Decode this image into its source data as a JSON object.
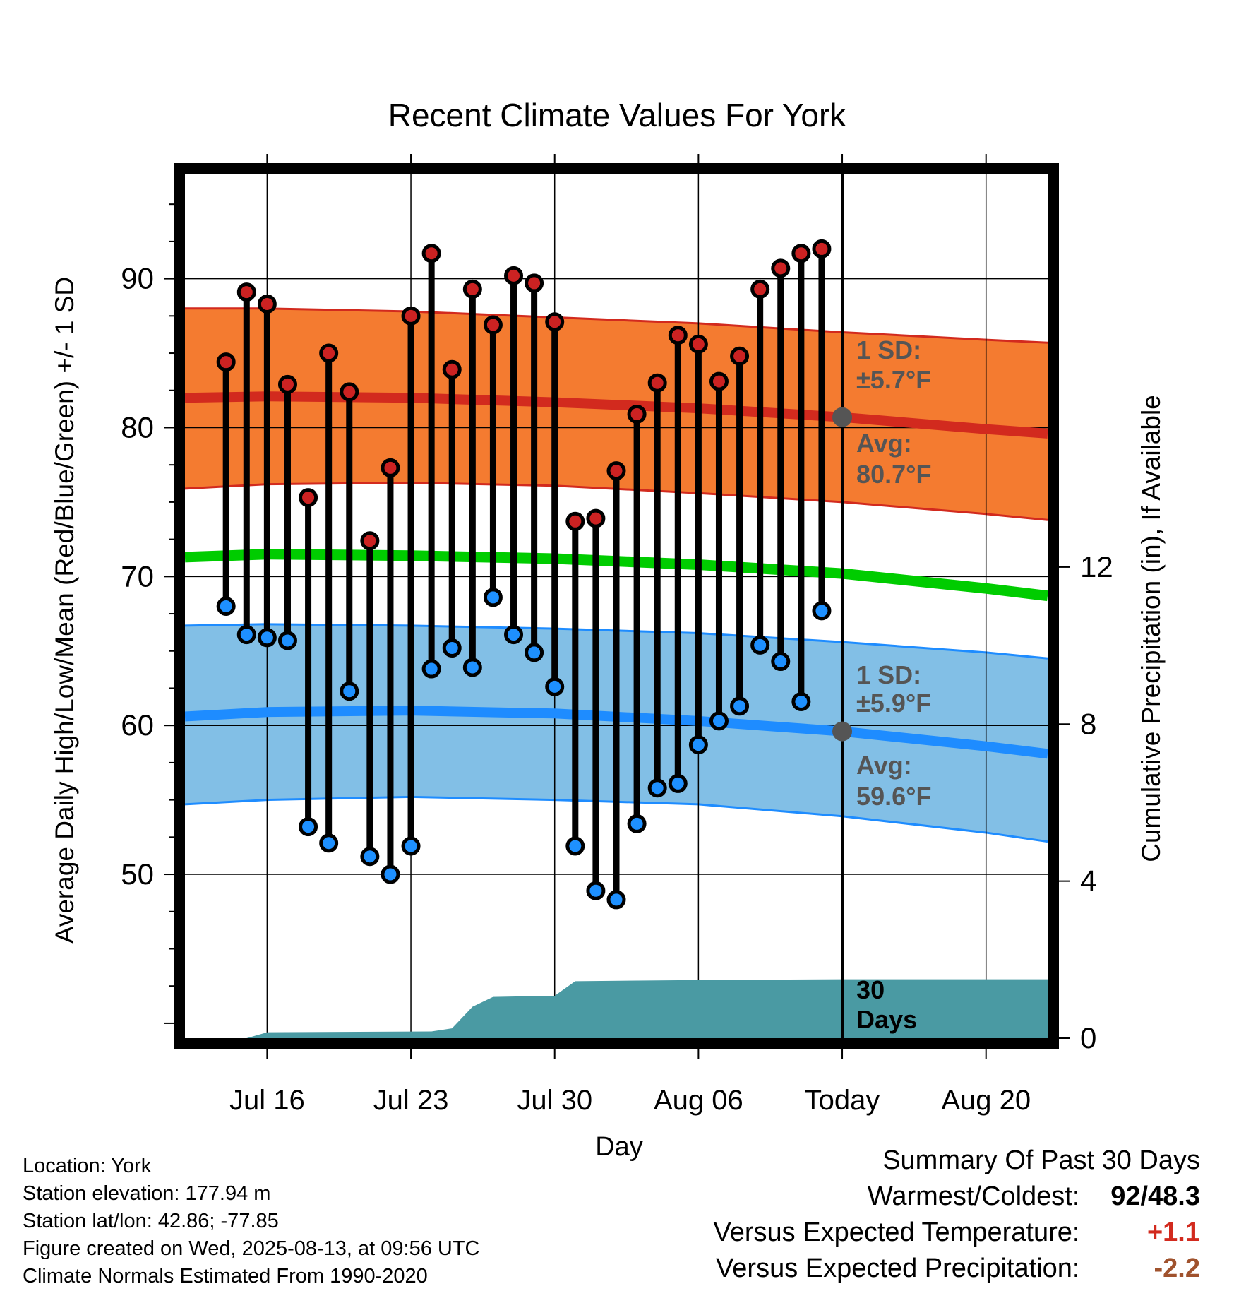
{
  "title": "Recent Climate Values For York",
  "ylabel_left": "Average Daily High/Low/Mean (Red/Blue/Green) +/- 1 SD",
  "ylabel_right": "Cumulative Precipitation (in), If Available",
  "xlabel": "Day",
  "y_ticks": [
    "50",
    "60",
    "70",
    "80",
    "90"
  ],
  "y2_ticks": [
    "0",
    "4",
    "8",
    "12"
  ],
  "x_ticks": [
    "Jul 16",
    "Jul 23",
    "Jul 30",
    "Aug 06",
    "Today",
    "Aug 20"
  ],
  "annotations": {
    "high_sd": "1 SD:",
    "high_sd_val": "±5.7°F",
    "high_avg": "Avg:",
    "high_avg_val": "80.7°F",
    "low_sd": "1 SD:",
    "low_sd_val": "±5.9°F",
    "low_avg": "Avg:",
    "low_avg_val": "59.6°F",
    "window_line1": "30",
    "window_line2": "Days"
  },
  "meta": {
    "location": "Location: York",
    "elevation": "Station elevation: 177.94 m",
    "latlon": "Station lat/lon: 42.86; -77.85",
    "created": "Figure created on Wed, 2025-08-13, at 09:56 UTC",
    "normals": "Climate Normals Estimated From 1990-2020"
  },
  "summary": {
    "header": "Summary Of Past 30 Days",
    "warmest_label": "Warmest/Coldest:",
    "warmest_value": "92/48.3",
    "temp_label": "Versus Expected Temperature:",
    "temp_value": "+1.1",
    "precip_label": "Versus Expected Precipitation:",
    "precip_value": "-2.2"
  },
  "colors": {
    "high_band": "#f47b30",
    "high_line": "#d22a1e",
    "low_band": "#82bfe6",
    "low_line": "#1e8cff",
    "mean_line": "#00cc00",
    "precip": "#4a9aa3",
    "high_dot": "#cc2222",
    "low_dot": "#1e90ff"
  },
  "chart_data": {
    "type": "line",
    "x_ticks": [
      "Jul 16",
      "Jul 23",
      "Jul 30",
      "Aug 06",
      "Today",
      "Aug 20"
    ],
    "x_tick_dates": [
      "2025-07-16",
      "2025-07-23",
      "2025-07-30",
      "2025-08-06",
      "2025-08-13",
      "2025-08-20"
    ],
    "xlim": [
      "2025-07-12",
      "2025-08-23"
    ],
    "ylim": [
      39,
      97
    ],
    "y2lim": [
      0,
      22
    ],
    "grid": true,
    "today": "2025-08-13",
    "observations": {
      "dates": [
        "2025-07-14",
        "2025-07-15",
        "2025-07-16",
        "2025-07-17",
        "2025-07-18",
        "2025-07-19",
        "2025-07-20",
        "2025-07-21",
        "2025-07-22",
        "2025-07-23",
        "2025-07-24",
        "2025-07-25",
        "2025-07-26",
        "2025-07-27",
        "2025-07-28",
        "2025-07-29",
        "2025-07-30",
        "2025-07-31",
        "2025-08-01",
        "2025-08-02",
        "2025-08-03",
        "2025-08-04",
        "2025-08-05",
        "2025-08-06",
        "2025-08-07",
        "2025-08-08",
        "2025-08-09",
        "2025-08-10",
        "2025-08-11",
        "2025-08-12"
      ],
      "high": [
        84.4,
        89.1,
        88.3,
        82.9,
        75.3,
        85.0,
        82.4,
        72.4,
        77.3,
        87.5,
        91.7,
        83.9,
        89.3,
        86.9,
        90.2,
        89.7,
        87.1,
        73.7,
        73.9,
        77.1,
        80.9,
        83.0,
        86.2,
        85.6,
        83.1,
        84.8,
        89.3,
        90.7,
        91.7,
        92.0
      ],
      "low": [
        68.0,
        66.1,
        65.9,
        65.7,
        53.2,
        52.1,
        62.3,
        51.2,
        50.0,
        51.9,
        63.8,
        65.2,
        63.9,
        68.6,
        66.1,
        64.9,
        62.6,
        51.9,
        48.9,
        48.3,
        53.4,
        55.8,
        56.1,
        58.7,
        60.3,
        61.3,
        65.4,
        64.3,
        61.6,
        67.7
      ]
    },
    "normals": {
      "dates": [
        "2025-07-12",
        "2025-07-16",
        "2025-07-23",
        "2025-07-30",
        "2025-08-06",
        "2025-08-13",
        "2025-08-20",
        "2025-08-23"
      ],
      "high_avg": [
        82.0,
        82.1,
        82.0,
        81.7,
        81.3,
        80.7,
        79.9,
        79.6
      ],
      "high_upper": [
        88.0,
        88.0,
        87.8,
        87.4,
        87.0,
        86.4,
        85.9,
        85.7
      ],
      "high_lower": [
        75.9,
        76.2,
        76.3,
        76.1,
        75.6,
        75.0,
        74.2,
        73.8
      ],
      "mean": [
        71.3,
        71.5,
        71.4,
        71.2,
        70.8,
        70.2,
        69.2,
        68.7
      ],
      "low_avg": [
        60.6,
        60.9,
        61.0,
        60.8,
        60.3,
        59.6,
        58.6,
        58.1
      ],
      "low_upper": [
        66.7,
        66.8,
        66.7,
        66.5,
        66.2,
        65.6,
        64.9,
        64.5
      ],
      "low_lower": [
        54.7,
        55.0,
        55.2,
        55.0,
        54.7,
        53.9,
        52.8,
        52.2
      ]
    },
    "precipitation": {
      "dates": [
        "2025-07-12",
        "2025-07-15",
        "2025-07-16",
        "2025-07-24",
        "2025-07-25",
        "2025-07-26",
        "2025-07-27",
        "2025-07-30",
        "2025-07-31",
        "2025-08-06",
        "2025-08-13",
        "2025-08-23"
      ],
      "cumulative": [
        0.0,
        0.0,
        0.15,
        0.17,
        0.25,
        0.8,
        1.05,
        1.08,
        1.45,
        1.48,
        1.5,
        1.5
      ]
    }
  }
}
